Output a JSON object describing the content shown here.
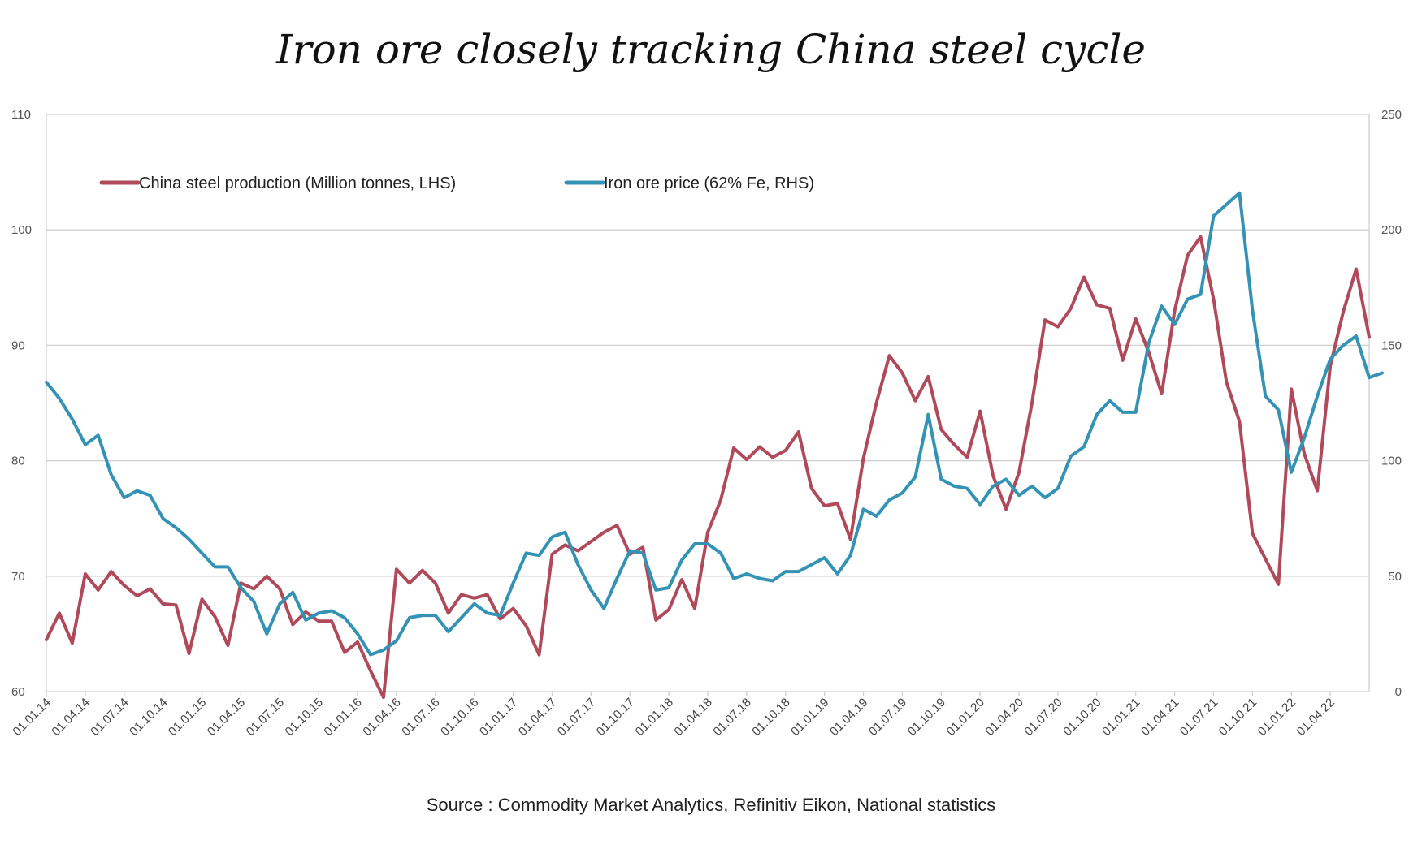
{
  "chart_data": {
    "type": "line",
    "title": "Iron ore closely tracking China steel cycle",
    "source": "Source : Commodity Market Analytics, Refinitiv Eikon, National statistics",
    "y_left": {
      "min": 60,
      "max": 110,
      "ticks": [
        "110",
        "100",
        "90",
        "80",
        "70",
        "60"
      ]
    },
    "y_right": {
      "min": 0,
      "max": 250,
      "ticks": [
        "250",
        "200",
        "150",
        "100",
        "50",
        "0"
      ]
    },
    "x_labels": [
      "01.01.14",
      "01.04.14",
      "01.07.14",
      "01.10.14",
      "01.01.15",
      "01.04.15",
      "01.07.15",
      "01.10.15",
      "01.01.16",
      "01.04.16",
      "01.07.16",
      "01.10.16",
      "01.01.17",
      "01.04.17",
      "01.07.17",
      "01.10.17",
      "01.01.18",
      "01.04.18",
      "01.07.18",
      "01.10.18",
      "01.01.19",
      "01.04.19",
      "01.07.19",
      "01.10.19",
      "01.01.20",
      "01.04.20",
      "01.07.20",
      "01.10.20",
      "01.01.21",
      "01.04.21",
      "01.07.21",
      "01.10.21",
      "01.01.22",
      "01.04.22"
    ],
    "grid": true,
    "legend_position": "top-left",
    "series": [
      {
        "name": "China steel production (Million tonnes, LHS)",
        "axis": "left",
        "color": "#b0495a",
        "values": [
          64.5,
          66.8,
          64.2,
          70.2,
          68.8,
          70.4,
          69.2,
          68.3,
          68.9,
          67.6,
          67.5,
          63.3,
          68.0,
          66.5,
          64.0,
          69.4,
          68.9,
          70.0,
          68.9,
          65.8,
          66.9,
          66.1,
          66.1,
          63.4,
          64.3,
          61.8,
          59.5,
          70.6,
          69.4,
          70.5,
          69.4,
          66.8,
          68.4,
          68.1,
          68.4,
          66.3,
          67.2,
          65.7,
          63.2,
          71.9,
          72.7,
          72.2,
          73.0,
          73.8,
          74.4,
          71.9,
          72.5,
          66.2,
          67.1,
          69.7,
          67.2,
          73.8,
          76.6,
          81.1,
          80.1,
          81.2,
          80.3,
          80.9,
          82.5,
          77.6,
          76.1,
          76.3,
          73.2,
          80.2,
          85.0,
          89.1,
          87.6,
          85.2,
          87.3,
          82.7,
          81.4,
          80.3,
          84.3,
          78.7,
          75.8,
          79.0,
          85.0,
          92.2,
          91.6,
          93.2,
          95.9,
          93.5,
          93.2,
          88.7,
          92.3,
          89.4,
          85.8,
          93.0,
          97.8,
          99.4,
          94.0,
          86.8,
          83.4,
          73.7,
          71.5,
          69.3,
          86.2,
          80.6,
          77.4,
          88.2,
          92.9,
          96.6,
          90.7
        ]
      },
      {
        "name": "Iron ore price (62% Fe, RHS)",
        "axis": "right",
        "color": "#3493b5",
        "values": [
          134,
          127,
          118,
          107,
          111,
          94,
          84,
          87,
          85,
          75,
          71,
          66,
          60,
          54,
          54,
          45,
          39,
          25,
          38,
          43,
          31,
          34,
          35,
          32,
          25,
          16,
          18,
          22,
          32,
          33,
          33,
          26,
          32,
          38,
          34,
          33,
          47,
          60,
          59,
          67,
          69,
          55,
          44,
          36,
          49,
          61,
          60,
          44,
          45,
          57,
          64,
          64,
          60,
          49,
          51,
          49,
          48,
          52,
          52,
          55,
          58,
          51,
          59,
          79,
          76,
          83,
          86,
          93,
          120,
          92,
          89,
          88,
          81,
          89,
          92,
          85,
          89,
          84,
          88,
          102,
          106,
          120,
          126,
          121,
          121,
          151,
          167,
          159,
          170,
          172,
          206,
          211,
          216,
          165,
          128,
          122,
          95,
          110,
          128,
          144,
          150,
          154,
          136,
          138
        ]
      }
    ]
  }
}
